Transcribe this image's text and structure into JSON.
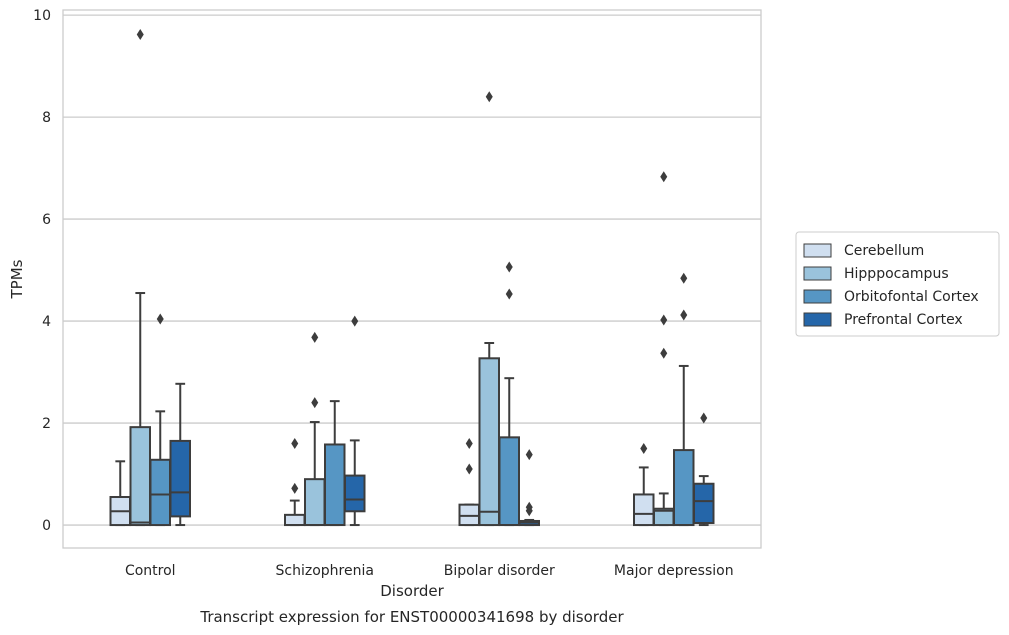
{
  "chart_data": {
    "type": "box",
    "title": "",
    "caption": "Transcript expression for ENST00000341698 by disorder",
    "xlabel": "Disorder",
    "ylabel": "TPMs",
    "ylim": [
      -0.45,
      10.1
    ],
    "yticks": [
      0,
      2,
      4,
      6,
      8,
      10
    ],
    "grid": "horizontal",
    "legend_position": "right",
    "categories": [
      "Control",
      "Schizophrenia",
      "Bipolar disorder",
      "Major depression"
    ],
    "series": [
      {
        "name": "Cerebellum",
        "color": "#d0dff0",
        "boxes": [
          {
            "whisker_low": 0.0,
            "q1": 0.0,
            "median": 0.27,
            "q3": 0.55,
            "whisker_high": 1.25,
            "outliers": []
          },
          {
            "whisker_low": 0.0,
            "q1": 0.0,
            "median": 0.0,
            "q3": 0.2,
            "whisker_high": 0.48,
            "outliers": [
              0.72,
              1.6
            ]
          },
          {
            "whisker_low": 0.0,
            "q1": 0.0,
            "median": 0.18,
            "q3": 0.4,
            "whisker_high": 0.4,
            "outliers": [
              1.1,
              1.6
            ]
          },
          {
            "whisker_low": 0.0,
            "q1": 0.0,
            "median": 0.22,
            "q3": 0.6,
            "whisker_high": 1.13,
            "outliers": [
              1.5
            ]
          }
        ]
      },
      {
        "name": "Hipppocampus",
        "color": "#9ac3dc",
        "boxes": [
          {
            "whisker_low": 0.0,
            "q1": 0.0,
            "median": 0.05,
            "q3": 1.92,
            "whisker_high": 4.55,
            "outliers": [
              9.62
            ]
          },
          {
            "whisker_low": 0.0,
            "q1": 0.0,
            "median": 0.0,
            "q3": 0.9,
            "whisker_high": 2.02,
            "outliers": [
              2.4,
              3.68
            ]
          },
          {
            "whisker_low": 0.0,
            "q1": 0.0,
            "median": 0.26,
            "q3": 3.27,
            "whisker_high": 3.57,
            "outliers": [
              8.4
            ]
          },
          {
            "whisker_low": 0.0,
            "q1": 0.0,
            "median": 0.28,
            "q3": 0.32,
            "whisker_high": 0.62,
            "outliers": [
              3.37,
              4.02,
              6.83
            ]
          }
        ]
      },
      {
        "name": "Orbitofontal Cortex",
        "color": "#5696c4",
        "boxes": [
          {
            "whisker_low": 0.0,
            "q1": 0.0,
            "median": 0.6,
            "q3": 1.28,
            "whisker_high": 2.23,
            "outliers": [
              4.04
            ]
          },
          {
            "whisker_low": 0.0,
            "q1": 0.0,
            "median": 0.0,
            "q3": 1.58,
            "whisker_high": 2.43,
            "outliers": []
          },
          {
            "whisker_low": 0.0,
            "q1": 0.0,
            "median": 0.0,
            "q3": 1.72,
            "whisker_high": 2.88,
            "outliers": [
              4.53,
              5.06
            ]
          },
          {
            "whisker_low": 0.0,
            "q1": 0.0,
            "median": 0.0,
            "q3": 1.47,
            "whisker_high": 3.12,
            "outliers": [
              4.12,
              4.84
            ]
          }
        ]
      },
      {
        "name": "Prefrontal Cortex",
        "color": "#2566a9",
        "boxes": [
          {
            "whisker_low": 0.0,
            "q1": 0.17,
            "median": 0.64,
            "q3": 1.65,
            "whisker_high": 2.77,
            "outliers": []
          },
          {
            "whisker_low": 0.0,
            "q1": 0.27,
            "median": 0.5,
            "q3": 0.97,
            "whisker_high": 1.66,
            "outliers": [
              4.0
            ]
          },
          {
            "whisker_low": 0.0,
            "q1": 0.0,
            "median": 0.05,
            "q3": 0.08,
            "whisker_high": 0.1,
            "outliers": [
              0.28,
              0.35,
              1.38
            ]
          },
          {
            "whisker_low": 0.0,
            "q1": 0.04,
            "median": 0.47,
            "q3": 0.81,
            "whisker_high": 0.96,
            "outliers": [
              2.1
            ]
          }
        ]
      }
    ]
  }
}
